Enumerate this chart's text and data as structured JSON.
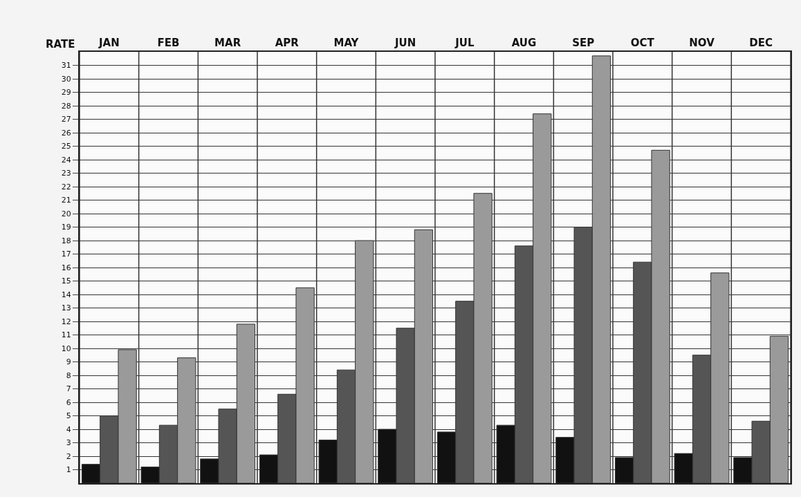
{
  "chart_data": {
    "type": "bar",
    "ylabel": "RATE",
    "categories": [
      "JAN",
      "FEB",
      "MAR",
      "APR",
      "MAY",
      "JUN",
      "JUL",
      "AUG",
      "SEP",
      "OCT",
      "NOV",
      "DEC"
    ],
    "series": [
      {
        "color": "#111111",
        "values": [
          1.4,
          1.2,
          1.8,
          2.1,
          3.2,
          4.0,
          3.8,
          4.3,
          3.4,
          1.9,
          2.2,
          1.9
        ]
      },
      {
        "color": "#555555",
        "values": [
          5.0,
          4.3,
          5.5,
          6.6,
          8.4,
          11.5,
          13.5,
          17.6,
          19.0,
          16.4,
          9.5,
          4.6
        ]
      },
      {
        "color": "#9a9a9a",
        "values": [
          9.9,
          9.3,
          11.8,
          14.5,
          18.0,
          18.8,
          21.5,
          27.4,
          31.7,
          24.7,
          15.6,
          10.9
        ]
      }
    ],
    "ylim": [
      0,
      32
    ],
    "yticks": [
      1,
      2,
      3,
      4,
      5,
      6,
      7,
      8,
      9,
      10,
      11,
      12,
      13,
      14,
      15,
      16,
      17,
      18,
      19,
      20,
      21,
      22,
      23,
      24,
      25,
      26,
      27,
      28,
      29,
      30,
      31
    ],
    "grid": true
  }
}
